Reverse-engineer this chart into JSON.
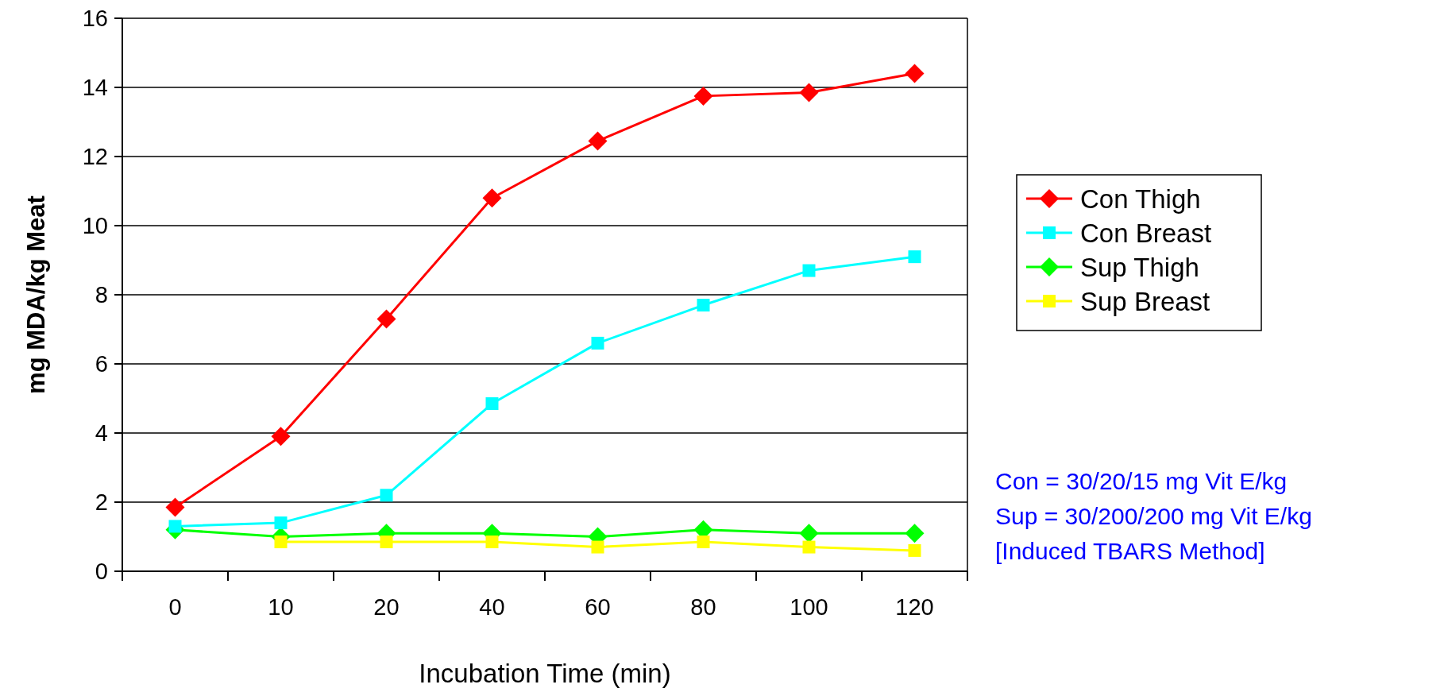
{
  "chart_data": {
    "type": "line",
    "xlabel": "Incubation Time (min)",
    "ylabel": "mg MDA/kg Meat",
    "categories": [
      "0",
      "10",
      "20",
      "40",
      "60",
      "80",
      "100",
      "120"
    ],
    "ylim": [
      0,
      16
    ],
    "yticks": [
      0,
      2,
      4,
      6,
      8,
      10,
      12,
      14,
      16
    ],
    "grid": "y",
    "legend": "right",
    "series": [
      {
        "name": "Con Thigh",
        "color": "#ff0000",
        "marker": "diamond",
        "values": [
          1.85,
          3.9,
          7.3,
          10.8,
          12.45,
          13.75,
          13.85,
          14.4
        ]
      },
      {
        "name": "Con Breast",
        "color": "#00ffff",
        "marker": "square",
        "values": [
          1.3,
          1.4,
          2.2,
          4.85,
          6.6,
          7.7,
          8.7,
          9.1
        ]
      },
      {
        "name": "Sup Thigh",
        "color": "#00ff00",
        "marker": "diamond",
        "values": [
          1.2,
          1.0,
          1.1,
          1.1,
          1.0,
          1.2,
          1.1,
          1.1
        ]
      },
      {
        "name": "Sup Breast",
        "color": "#ffff00",
        "marker": "square",
        "values": [
          null,
          0.85,
          0.85,
          0.85,
          0.7,
          0.85,
          0.7,
          0.6
        ]
      }
    ],
    "annotations": [
      "Con = 30/20/15 mg Vit E/kg",
      "Sup = 30/200/200 mg Vit E/kg",
      "[Induced TBARS Method]"
    ]
  }
}
